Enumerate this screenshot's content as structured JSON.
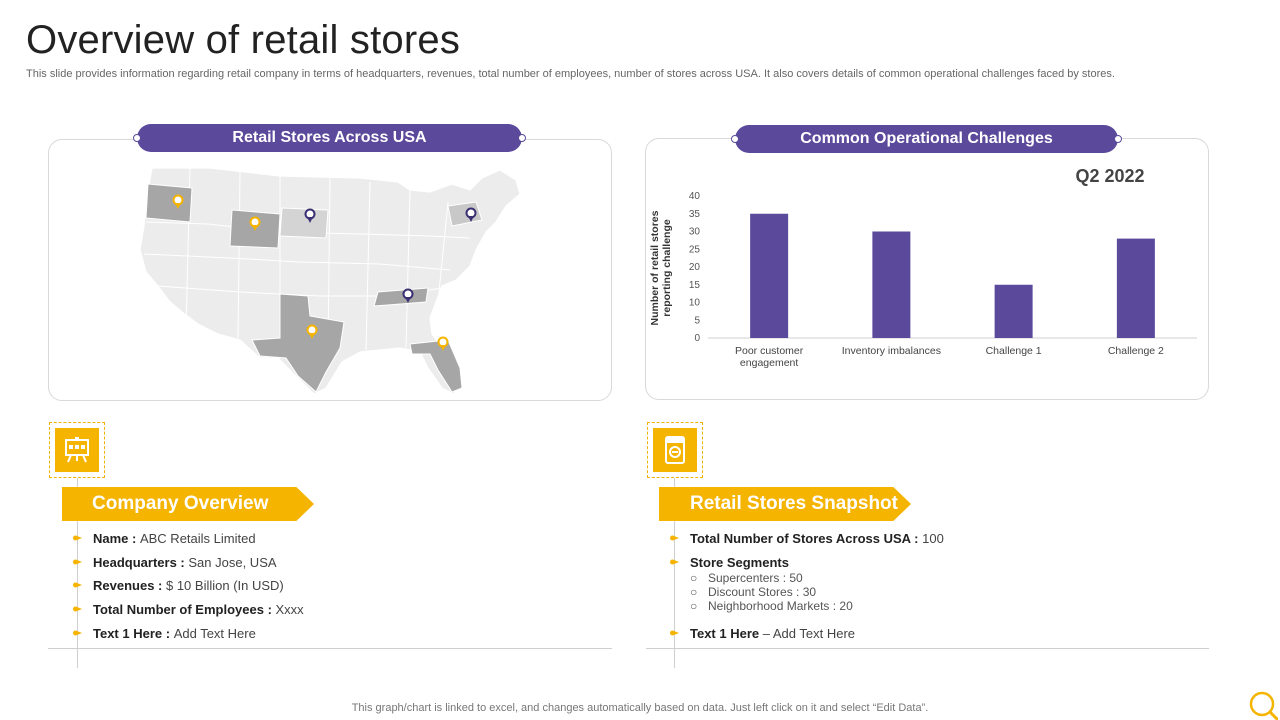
{
  "page": {
    "title": "Overview of retail stores",
    "subtitle": "This slide provides information regarding retail company in terms of headquarters, revenues, total number of employees, number of stores across USA. It also covers details of common operational challenges faced by stores.",
    "footer": "This graph/chart is linked to excel,  and changes automatically based on data. Just left click on it and select “Edit Data”."
  },
  "map_panel": {
    "header": "Retail Stores  Across  USA"
  },
  "chart_panel": {
    "header": "Common Operational Challenges",
    "period": "Q2 2022"
  },
  "chart_data": {
    "type": "bar",
    "title": "Q2 2022",
    "ylabel": "Number of retail stores reporting challenge",
    "categories": [
      "Poor customer engagement",
      "Inventory imbalances",
      "Challenge 1",
      "Challenge 2"
    ],
    "values": [
      35,
      30,
      15,
      28
    ],
    "ylim": [
      0,
      40
    ],
    "yticks": [
      0,
      5,
      10,
      15,
      20,
      25,
      30,
      35,
      40
    ],
    "bar_color": "#5b4a9b",
    "grid": false
  },
  "company": {
    "banner": "Company Overview",
    "rows": [
      {
        "label": "Name : ",
        "value": "ABC Retails Limited"
      },
      {
        "label": "Headquarters : ",
        "value": "San Jose, USA"
      },
      {
        "label": "Revenues : ",
        "value": "$ 10 Billion (In USD)"
      },
      {
        "label": "Total Number of Employees : ",
        "value": "Xxxx"
      },
      {
        "label": "Text 1 Here : ",
        "value": "Add Text Here"
      }
    ]
  },
  "snapshot": {
    "banner": "Retail Stores Snapshot",
    "total_label": "Total Number of Stores Across  USA  : ",
    "total_value": "100",
    "segments_label": "Store Segments",
    "segments": [
      "Supercenters : 50",
      "Discount Stores : 30",
      "Neighborhood Markets : 20"
    ],
    "text_label": "Text 1 Here",
    "text_value": " – Add Text Here"
  },
  "icons": {
    "company": "presentation-board-icon",
    "stores": "store-icon",
    "bullet": "arrow-bullet-icon",
    "search": "search-icon"
  },
  "colors": {
    "accent_purple": "#5b4a9b",
    "accent_yellow": "#f5b400",
    "map_light": "#eeeeee",
    "map_highlight": "#a6a6a6"
  }
}
